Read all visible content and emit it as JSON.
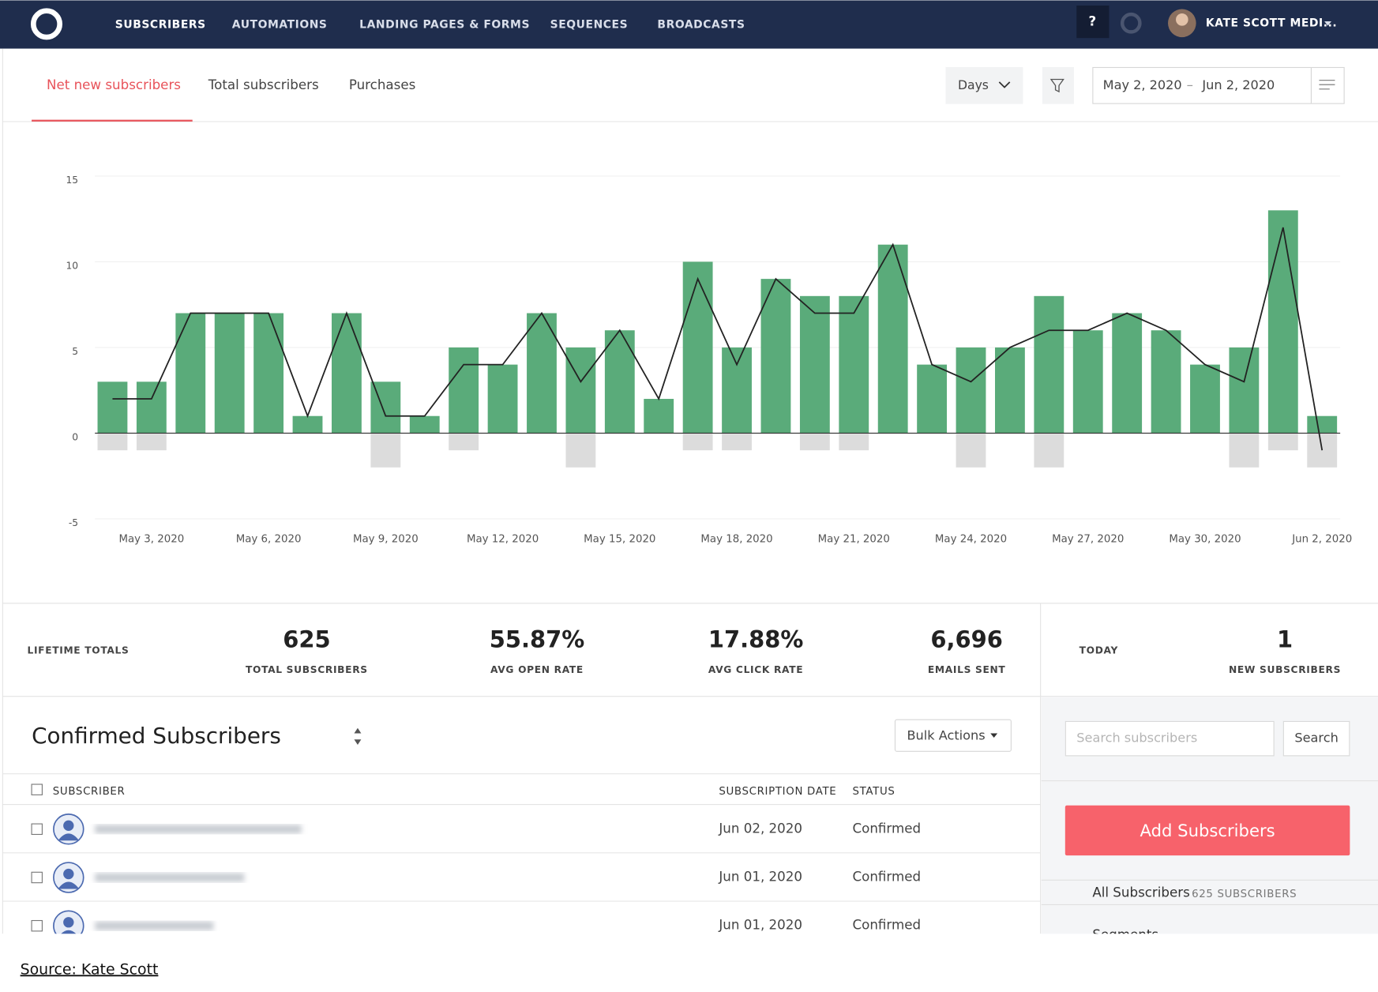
{
  "nav": {
    "items": [
      "SUBSCRIBERS",
      "AUTOMATIONS",
      "LANDING PAGES & FORMS",
      "SEQUENCES",
      "BROADCASTS"
    ],
    "help": "?",
    "user": "KATE SCOTT MEDI..."
  },
  "tabs": [
    "Net new subscribers",
    "Total subscribers",
    "Purchases"
  ],
  "filters": {
    "interval": "Days",
    "date_from": "May 2, 2020",
    "date_sep": "–",
    "date_to": "Jun 2, 2020"
  },
  "chart_data": {
    "type": "bar",
    "categories": [
      null,
      "May 3, 2020",
      null,
      null,
      "May 6, 2020",
      null,
      null,
      "May 9, 2020",
      null,
      null,
      "May 12, 2020",
      null,
      null,
      "May 15, 2020",
      null,
      null,
      "May 18, 2020",
      null,
      null,
      "May 21, 2020",
      null,
      null,
      "May 24, 2020",
      null,
      null,
      "May 27, 2020",
      null,
      null,
      "May 30, 2020",
      null,
      null,
      "Jun 2, 2020"
    ],
    "series": [
      {
        "color": "#5aab7a",
        "values": [
          3,
          3,
          7,
          7,
          7,
          1,
          7,
          3,
          1,
          5,
          4,
          7,
          5,
          6,
          2,
          10,
          5,
          9,
          8,
          8,
          11,
          4,
          5,
          5,
          8,
          6,
          7,
          6,
          4,
          5,
          13,
          1
        ]
      },
      {
        "color": "#dcdcdc",
        "values": [
          -1,
          -1,
          0,
          0,
          0,
          0,
          0,
          -2,
          0,
          -1,
          0,
          0,
          -2,
          0,
          0,
          -1,
          -1,
          0,
          -1,
          -1,
          0,
          0,
          -2,
          0,
          -2,
          0,
          0,
          0,
          0,
          -2,
          -1,
          -2
        ]
      },
      {
        "type": "line",
        "color": "#222222",
        "values": [
          2,
          2,
          7,
          7,
          7,
          1,
          7,
          1,
          1,
          4,
          4,
          7,
          3,
          6,
          2,
          9,
          4,
          9,
          7,
          7,
          11,
          4,
          3,
          5,
          6,
          6,
          7,
          6,
          4,
          3,
          12,
          -1
        ]
      }
    ],
    "ylim": [
      -5,
      15
    ],
    "yticks": [
      -5,
      0,
      5,
      10,
      15
    ],
    "grid": true
  },
  "totals": {
    "label": "LIFETIME TOTALS",
    "stats": [
      {
        "value": "625",
        "label": "TOTAL SUBSCRIBERS"
      },
      {
        "value": "55.87%",
        "label": "AVG OPEN RATE"
      },
      {
        "value": "17.88%",
        "label": "AVG CLICK RATE"
      },
      {
        "value": "6,696",
        "label": "EMAILS SENT"
      }
    ]
  },
  "today": {
    "label": "TODAY",
    "value": "1",
    "caption": "NEW SUBSCRIBERS"
  },
  "list": {
    "title": "Confirmed Subscribers",
    "bulk": "Bulk Actions",
    "columns": [
      "SUBSCRIBER",
      "SUBSCRIPTION DATE",
      "STATUS"
    ],
    "rows": [
      {
        "date": "Jun 02, 2020",
        "status": "Confirmed"
      },
      {
        "date": "Jun 01, 2020",
        "status": "Confirmed"
      },
      {
        "date": "Jun 01, 2020",
        "status": "Confirmed"
      }
    ]
  },
  "sidebar": {
    "search_placeholder": "Search subscribers",
    "search_button": "Search",
    "add_button": "Add Subscribers",
    "all_label": "All Subscribers",
    "all_count": "625 SUBSCRIBERS",
    "segments": "Segments"
  },
  "source": "Source: Kate Scott"
}
